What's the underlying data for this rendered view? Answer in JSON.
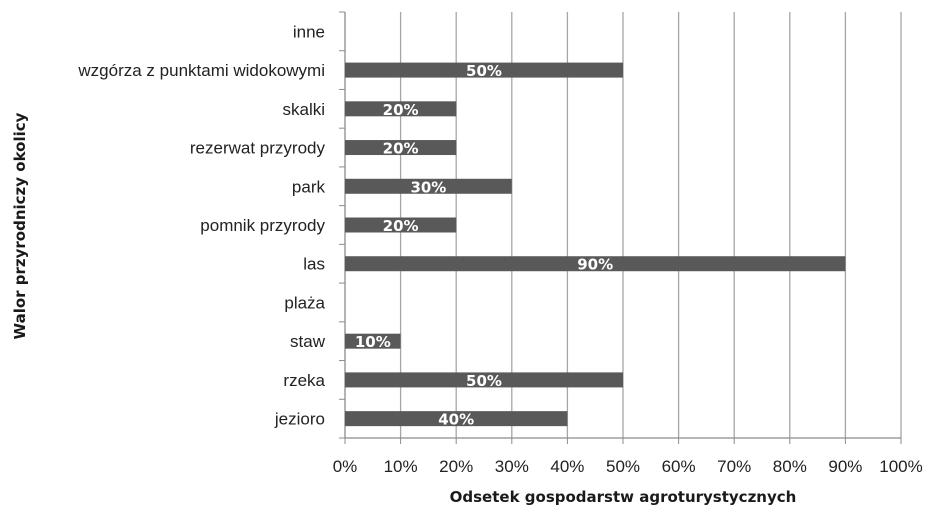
{
  "chart_data": {
    "type": "bar",
    "orientation": "horizontal",
    "categories": [
      "inne",
      "wzgórza z punktami widokowymi",
      "skalki",
      "rezerwat przyrody",
      "park",
      "pomnik przyrody",
      "las",
      "plaża",
      "staw",
      "rzeka",
      "jezioro"
    ],
    "values": [
      0,
      50,
      20,
      20,
      30,
      20,
      90,
      0,
      10,
      50,
      40
    ],
    "data_labels": [
      "",
      "50%",
      "20%",
      "20%",
      "30%",
      "20%",
      "90%",
      "",
      "10%",
      "50%",
      "40%"
    ],
    "xlabel": "Odsetek gospodarstw agroturystycznych",
    "ylabel": "Walor przyrodniczy okolicy",
    "xlim": [
      0,
      100
    ],
    "x_ticks": [
      "0%",
      "10%",
      "20%",
      "30%",
      "40%",
      "50%",
      "60%",
      "70%",
      "80%",
      "90%",
      "100%"
    ],
    "grid": true,
    "legend": "none",
    "colors": {
      "bar": "#595959",
      "grid": "#a6a6a6",
      "axis": "#8c8c8c"
    }
  }
}
